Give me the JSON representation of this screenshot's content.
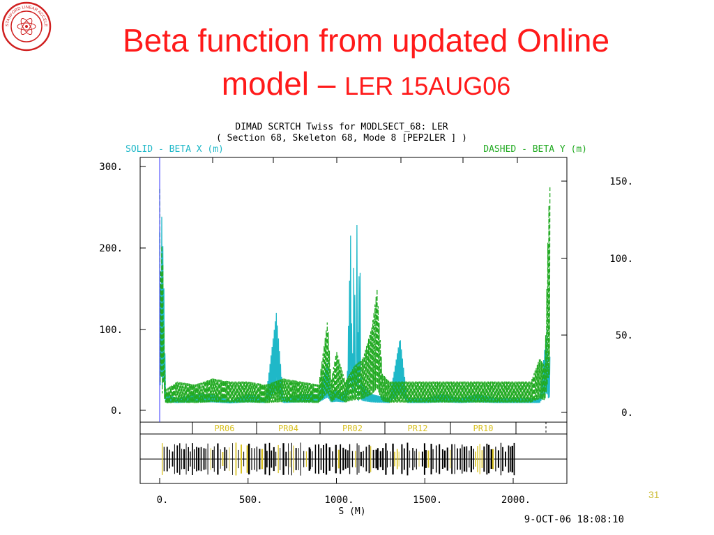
{
  "slide": {
    "title_line1": "Beta function from updated Online",
    "title_line2_main": "model – ",
    "title_line2_small": "LER 15AUG06",
    "page_number": "31",
    "seal_text": "STANFORD LINEAR ACCELERATOR CENTER"
  },
  "plot_header": {
    "line1": "DIMAD SCRTCH Twiss for MODLSECT_68:  LER",
    "line2": "( Section  68, Skeleton 68, Mode  8 [PEP2LER ] )",
    "solid_label": "SOLID  - BETA X (m)",
    "dashed_label": "DASHED  - BETA Y (m)",
    "date_stamp": "9-OCT-06 18:08:10"
  },
  "colors": {
    "title": "#ff1a1a",
    "beta_x": "#1fb8c8",
    "beta_y": "#22aa22",
    "section_label": "#d8c020",
    "frame": "#000000"
  },
  "chart_data": {
    "type": "line",
    "xlabel": "S (M)",
    "xlim": [
      -100,
      2250
    ],
    "x_ticks": [
      "0.",
      "500.",
      "1000.",
      "1500.",
      "2000."
    ],
    "y_left_ticks": [
      "300.",
      "200.",
      "100.",
      "0."
    ],
    "y_right_ticks": [
      "150.",
      "100.",
      "50.",
      "0."
    ],
    "ylim_left": [
      0,
      300
    ],
    "ylim_right": [
      0,
      150
    ],
    "sections": [
      "PR06",
      "PR04",
      "PR02",
      "PR12",
      "PR10"
    ],
    "series": [
      {
        "name": "BETA X (m)",
        "style": "solid",
        "axis": "left",
        "points": [
          [
            0,
            220
          ],
          [
            5,
            120
          ],
          [
            10,
            290
          ],
          [
            15,
            160
          ],
          [
            20,
            230
          ],
          [
            25,
            130
          ],
          [
            30,
            70
          ],
          [
            35,
            20
          ],
          [
            100,
            15
          ],
          [
            200,
            20
          ],
          [
            300,
            20
          ],
          [
            400,
            12
          ],
          [
            500,
            20
          ],
          [
            600,
            15
          ],
          [
            660,
            120
          ],
          [
            700,
            15
          ],
          [
            800,
            20
          ],
          [
            900,
            20
          ],
          [
            950,
            60
          ],
          [
            970,
            20
          ],
          [
            1000,
            25
          ],
          [
            1040,
            20
          ],
          [
            1060,
            30
          ],
          [
            1080,
            215
          ],
          [
            1090,
            35
          ],
          [
            1100,
            210
          ],
          [
            1110,
            40
          ],
          [
            1115,
            250
          ],
          [
            1125,
            30
          ],
          [
            1130,
            255
          ],
          [
            1140,
            40
          ],
          [
            1150,
            30
          ],
          [
            1200,
            20
          ],
          [
            1300,
            15
          ],
          [
            1360,
            90
          ],
          [
            1400,
            15
          ],
          [
            1500,
            15
          ],
          [
            1600,
            20
          ],
          [
            1700,
            15
          ],
          [
            1800,
            20
          ],
          [
            1900,
            15
          ],
          [
            2000,
            15
          ],
          [
            2100,
            15
          ],
          [
            2150,
            15
          ],
          [
            2190,
            100
          ],
          [
            2200,
            50
          ],
          [
            2210,
            70
          ]
        ]
      },
      {
        "name": "BETA Y (m)",
        "style": "dashed",
        "axis": "right",
        "points": [
          [
            0,
            145
          ],
          [
            5,
            80
          ],
          [
            10,
            140
          ],
          [
            15,
            60
          ],
          [
            20,
            120
          ],
          [
            25,
            40
          ],
          [
            35,
            15
          ],
          [
            100,
            20
          ],
          [
            200,
            18
          ],
          [
            300,
            22
          ],
          [
            400,
            20
          ],
          [
            500,
            20
          ],
          [
            600,
            18
          ],
          [
            700,
            22
          ],
          [
            800,
            20
          ],
          [
            900,
            18
          ],
          [
            950,
            60
          ],
          [
            970,
            20
          ],
          [
            1000,
            40
          ],
          [
            1050,
            20
          ],
          [
            1100,
            30
          ],
          [
            1150,
            35
          ],
          [
            1200,
            55
          ],
          [
            1230,
            80
          ],
          [
            1260,
            25
          ],
          [
            1300,
            20
          ],
          [
            1400,
            20
          ],
          [
            1500,
            20
          ],
          [
            1600,
            20
          ],
          [
            1700,
            20
          ],
          [
            1800,
            20
          ],
          [
            1900,
            20
          ],
          [
            2000,
            20
          ],
          [
            2100,
            20
          ],
          [
            2150,
            35
          ],
          [
            2180,
            30
          ],
          [
            2200,
            130
          ],
          [
            2210,
            150
          ]
        ]
      }
    ]
  }
}
